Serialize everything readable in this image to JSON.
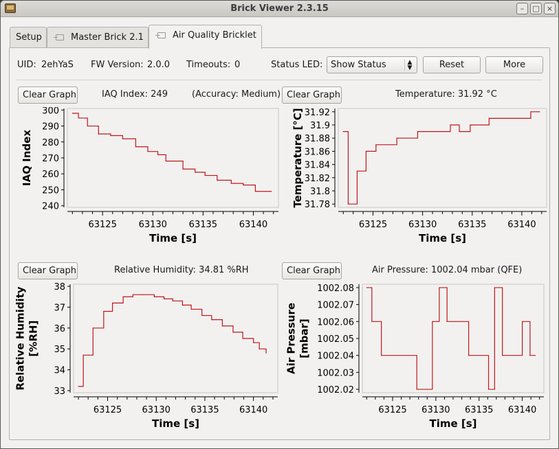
{
  "window": {
    "title": "Brick Viewer 2.3.15"
  },
  "tabs": [
    {
      "label": "Setup",
      "active": false
    },
    {
      "label": "Master Brick 2.1",
      "active": false
    },
    {
      "label": "Air Quality Bricklet",
      "active": true
    }
  ],
  "info": {
    "uid_label": "UID:",
    "uid_value": "2ehYaS",
    "fw_label": "FW Version:",
    "fw_value": "2.0.0",
    "timeouts_label": "Timeouts:",
    "timeouts_value": "0",
    "status_led_label": "Status LED:",
    "status_led_value": "Show Status",
    "reset_label": "Reset",
    "more_label": "More"
  },
  "colors": {
    "line": "#c0161a",
    "plot_bg": "#f2f1f0"
  },
  "graphs": [
    {
      "clear_label": "Clear Graph",
      "header": "IAQ Index: 249",
      "header2": "(Accuracy: Medium)",
      "chart_data": {
        "type": "line",
        "xlabel": "Time [s]",
        "ylabel": [
          "IAQ Index"
        ],
        "xlim": [
          63121.5,
          63142.5
        ],
        "ylim": [
          239,
          301
        ],
        "xticks": [
          63125,
          63130,
          63135,
          63140
        ],
        "yticks": [
          240,
          250,
          260,
          270,
          280,
          290,
          300
        ],
        "ytick_labels": [
          "240",
          "250",
          "260",
          "270",
          "280",
          "290",
          "300"
        ],
        "x": [
          63122,
          63122.6,
          63123.5,
          63124.6,
          63125.8,
          63127,
          63128.3,
          63129.5,
          63130.5,
          63131.3,
          63133,
          63134.2,
          63135.2,
          63136.4,
          63137.8,
          63139,
          63140.2,
          63141.8
        ],
        "y": [
          298,
          295,
          290,
          285,
          284,
          282,
          277,
          274,
          272,
          268,
          263,
          261,
          259,
          256,
          254,
          253,
          249,
          249
        ]
      }
    },
    {
      "clear_label": "Clear Graph",
      "header": "Temperature: 31.92 °C",
      "chart_data": {
        "type": "line",
        "xlabel": "Time [s]",
        "ylabel": [
          "Temperature [°C]"
        ],
        "xlim": [
          63121.5,
          63142.5
        ],
        "ylim": [
          31.775,
          31.925
        ],
        "xticks": [
          63125,
          63130,
          63135,
          63140
        ],
        "yticks": [
          31.78,
          31.8,
          31.82,
          31.84,
          31.86,
          31.88,
          31.9,
          31.92
        ],
        "ytick_labels": [
          "31.78",
          "31.8",
          "31.82",
          "31.84",
          "31.86",
          "31.88",
          "31.9",
          "31.92"
        ],
        "x": [
          63122,
          63122.5,
          63123.4,
          63124.3,
          63125.3,
          63127.4,
          63129.5,
          63132.8,
          63133.7,
          63134.8,
          63136.7,
          63138.3,
          63140.9,
          63141.8
        ],
        "y": [
          31.89,
          31.78,
          31.83,
          31.86,
          31.87,
          31.88,
          31.89,
          31.9,
          31.89,
          31.9,
          31.91,
          31.91,
          31.92,
          31.92
        ]
      }
    },
    {
      "clear_label": "Clear Graph",
      "header": "Relative Humidity: 34.81 %RH",
      "chart_data": {
        "type": "line",
        "xlabel": "Time [s]",
        "ylabel": [
          "Relative Humidity",
          "[%RH]"
        ],
        "xlim": [
          63121.5,
          63142.5
        ],
        "ylim": [
          32.9,
          38.1
        ],
        "xticks": [
          63125,
          63130,
          63135,
          63140
        ],
        "yticks": [
          33,
          34,
          35,
          36,
          37,
          38
        ],
        "ytick_labels": [
          "33",
          "34",
          "35",
          "36",
          "37",
          "38"
        ],
        "x": [
          63122,
          63122.5,
          63123.5,
          63124.6,
          63125.5,
          63126.6,
          63127.6,
          63128.6,
          63129.8,
          63130.8,
          63131.7,
          63132.7,
          63133.6,
          63134.7,
          63135.7,
          63136.8,
          63137.9,
          63138.9,
          63140,
          63140.6,
          63141.3
        ],
        "y": [
          33.2,
          34.7,
          36,
          36.8,
          37.2,
          37.5,
          37.6,
          37.6,
          37.5,
          37.4,
          37.3,
          37.1,
          36.9,
          36.6,
          36.4,
          36.1,
          35.8,
          35.5,
          35.3,
          35.0,
          34.8
        ]
      }
    },
    {
      "clear_label": "Clear Graph",
      "header": "Air Pressure: 1002.04 mbar (QFE)",
      "chart_data": {
        "type": "line",
        "xlabel": "Time [s]",
        "ylabel": [
          "Air Pressure",
          "[mbar]"
        ],
        "xlim": [
          63121.5,
          63142.5
        ],
        "ylim": [
          1002.018,
          1002.082
        ],
        "xticks": [
          63125,
          63130,
          63135,
          63140
        ],
        "yticks": [
          1002.02,
          1002.03,
          1002.04,
          1002.05,
          1002.06,
          1002.07,
          1002.08
        ],
        "ytick_labels": [
          "1002.02",
          "1002.03",
          "1002.04",
          "1002.05",
          "1002.06",
          "1002.07",
          "1002.08"
        ],
        "x": [
          63122,
          63122.6,
          63123.7,
          63127.8,
          63129.6,
          63130.4,
          63131.3,
          63133.8,
          63136.1,
          63136.8,
          63137.7,
          63140,
          63140.9,
          63141.5
        ],
        "y": [
          1002.08,
          1002.06,
          1002.04,
          1002.02,
          1002.06,
          1002.08,
          1002.06,
          1002.04,
          1002.02,
          1002.08,
          1002.04,
          1002.06,
          1002.04,
          1002.04
        ]
      }
    }
  ]
}
